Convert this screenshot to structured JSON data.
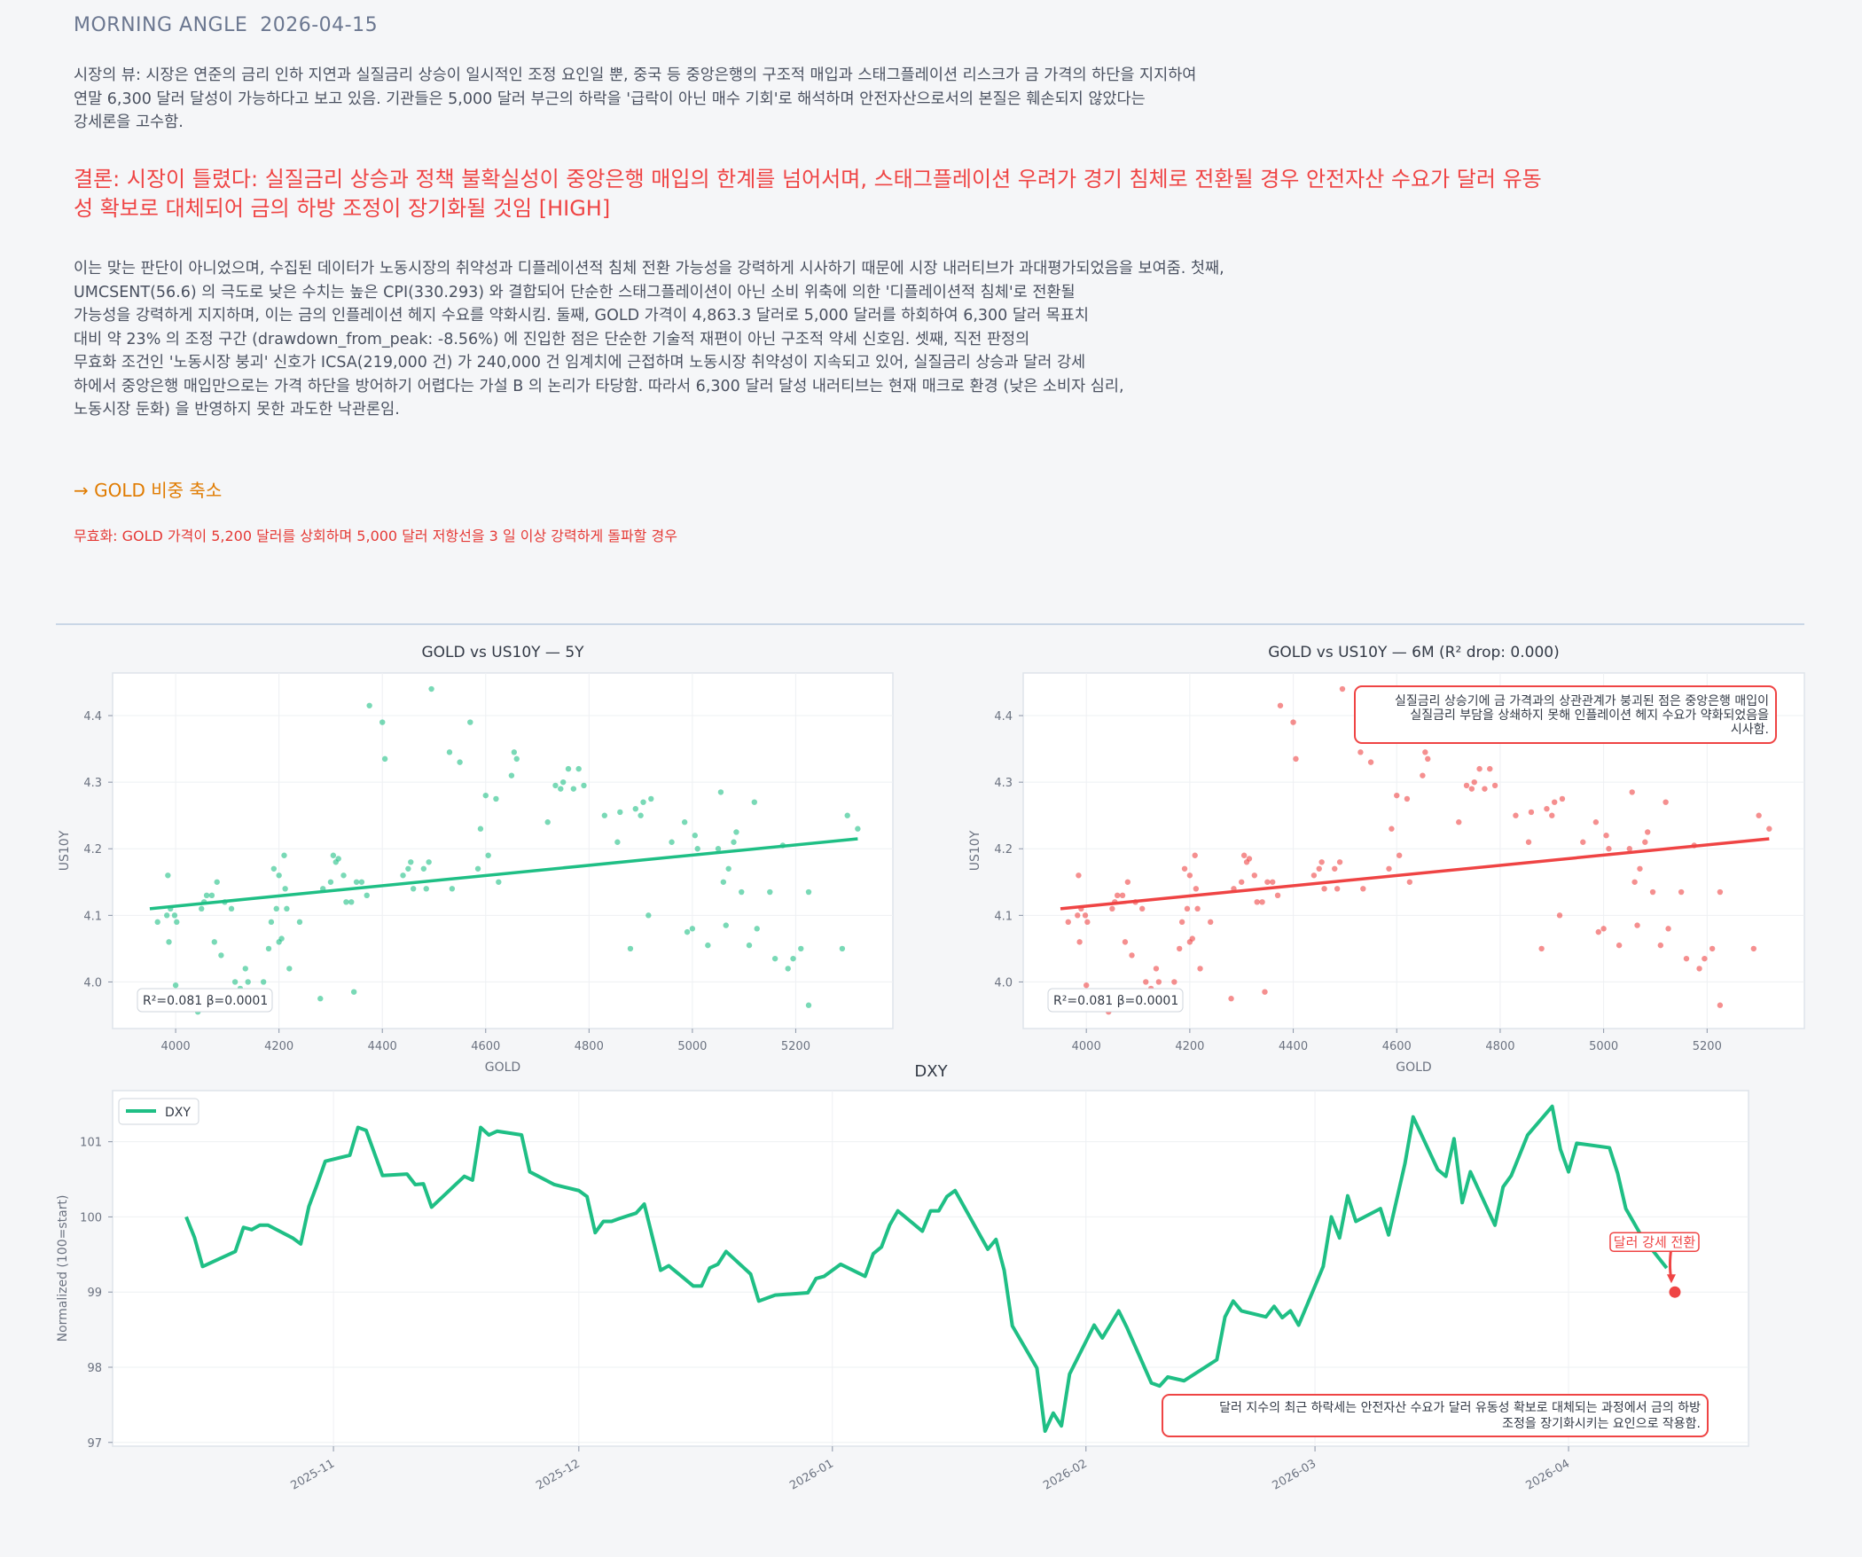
{
  "header": {
    "label": "MORNING ANGLE",
    "date": "2026-04-15"
  },
  "market_view": "시장의 뷰: 시장은 연준의 금리 인하 지연과 실질금리 상승이 일시적인 조정 요인일 뿐, 중국 등 중앙은행의 구조적 매입과 스태그플레이션 리스크가 금 가격의 하단을 지지하여\n연말 6,300 달러 달성이 가능하다고 보고 있음. 기관들은 5,000 달러 부근의 하락을 '급락이 아닌 매수 기회'로 해석하며 안전자산으로서의 본질은 훼손되지 않았다는\n강세론을 고수함.",
  "conclusion": "결론: 시장이 틀렸다: 실질금리 상승과 정책 불확실성이 중앙은행 매입의 한계를 넘어서며, 스태그플레이션 우려가 경기 침체로 전환될 경우 안전자산 수요가 달러 유동성 확보로 대체되어 금의 하방 조정이 장기화될 것임  [HIGH]",
  "analysis": "이는 맞는 판단이 아니었으며, 수집된 데이터가 노동시장의 취약성과 디플레이션적 침체 전환 가능성을 강력하게 시사하기 때문에 시장 내러티브가 과대평가되었음을 보여줌. 첫째,\nUMCSENT(56.6) 의 극도로 낮은 수치는 높은 CPI(330.293) 와 결합되어 단순한 스태그플레이션이 아닌 소비 위축에 의한 '디플레이션적 침체'로 전환될\n가능성을 강력하게 지지하며, 이는 금의 인플레이션 헤지 수요를 약화시킴. 둘째, GOLD 가격이 4,863.3 달러로 5,000 달러를 하회하여 6,300 달러 목표치\n대비 약 23% 의 조정 구간 (drawdown_from_peak: -8.56%) 에 진입한 점은 단순한 기술적 재편이 아닌 구조적 약세 신호임. 셋째, 직전 판정의\n무효화 조건인 '노동시장 붕괴' 신호가 ICSA(219,000 건) 가 240,000 건 임계치에 근접하며 노동시장 취약성이 지속되고 있어, 실질금리 상승과 달러 강세\n하에서 중앙은행 매입만으로는 가격 하단을 방어하기 어렵다는 가설 B 의 논리가 타당함. 따라서 6,300 달러 달성 내러티브는 현재 매크로 환경 (낮은 소비자 심리,\n노동시장 둔화) 을 반영하지 못한 과도한 낙관론임.",
  "action": "→ GOLD 비중 축소",
  "invalidation": "무효화: GOLD 가격이 5,200 달러를 상회하며 5,000 달러 저항선을 3 일 이상 강력하게 돌파할 경우",
  "colors": {
    "green": "#1fbf85",
    "red": "#ef4444",
    "orange": "#e07b00"
  },
  "chart_data": [
    {
      "type": "scatter",
      "title": "GOLD vs US10Y — 5Y",
      "xlabel": "GOLD",
      "ylabel": "US10Y",
      "xlim": [
        3878,
        5388
      ],
      "ylim": [
        3.93,
        4.464
      ],
      "xticks": [
        4000,
        4200,
        4400,
        4600,
        4800,
        5000,
        5200
      ],
      "yticks": [
        4.0,
        4.1,
        4.2,
        4.3,
        4.4
      ],
      "stats_label": "R²=0.081  β=0.0001",
      "fit": [
        [
          3950,
          4.11
        ],
        [
          5320,
          4.215
        ]
      ],
      "color": "#1fbf85"
    },
    {
      "type": "scatter",
      "title": "GOLD vs US10Y — 6M (R² drop: 0.000)",
      "xlabel": "GOLD",
      "ylabel": "US10Y",
      "xlim": [
        3878,
        5388
      ],
      "ylim": [
        3.93,
        4.464
      ],
      "xticks": [
        4000,
        4200,
        4400,
        4600,
        4800,
        5000,
        5200
      ],
      "yticks": [
        4.0,
        4.1,
        4.2,
        4.3,
        4.4
      ],
      "stats_label": "R²=0.081  β=0.0001",
      "fit": [
        [
          3950,
          4.11
        ],
        [
          5320,
          4.215
        ]
      ],
      "color": "#ef4444",
      "annotation": [
        "실질금리 상승기에 금 가격과의 상관관계가 붕괴된 점은 중앙은행 매입이",
        "실질금리 부담을 상쇄하지 못해 인플레이션 헤지 수요가 약화되었음을",
        "시사함."
      ]
    },
    {
      "type": "line",
      "title": "DXY",
      "ylabel": "Normalized (100=start)",
      "x_unit": "days since 2025-11-01",
      "xlim": [
        -27,
        173
      ],
      "ylim": [
        96.95,
        101.68
      ],
      "yticks": [
        97,
        98,
        99,
        100,
        101
      ],
      "xticks": [
        {
          "x": 0,
          "label": "2025-11"
        },
        {
          "x": 30,
          "label": "2025-12"
        },
        {
          "x": 61,
          "label": "2026-01"
        },
        {
          "x": 92,
          "label": "2026-02"
        },
        {
          "x": 120,
          "label": "2026-03"
        },
        {
          "x": 151,
          "label": "2026-04"
        }
      ],
      "legend": "DXY",
      "legend_position": "top-left",
      "series": [
        {
          "name": "DXY",
          "points": [
            [
              -18,
              100.0
            ],
            [
              -17,
              99.73
            ],
            [
              -16,
              99.34
            ],
            [
              -12,
              99.54
            ],
            [
              -11,
              99.86
            ],
            [
              -10,
              99.83
            ],
            [
              -9,
              99.89
            ],
            [
              -8,
              99.89
            ],
            [
              -5,
              99.72
            ],
            [
              -4,
              99.64
            ],
            [
              -3,
              100.14
            ],
            [
              -2,
              100.43
            ],
            [
              -1,
              100.74
            ],
            [
              2,
              100.82
            ],
            [
              3,
              101.19
            ],
            [
              4,
              101.15
            ],
            [
              6,
              100.55
            ],
            [
              9,
              100.57
            ],
            [
              10,
              100.43
            ],
            [
              11,
              100.44
            ],
            [
              12,
              100.13
            ],
            [
              16,
              100.54
            ],
            [
              17,
              100.49
            ],
            [
              18,
              101.19
            ],
            [
              19,
              101.09
            ],
            [
              20,
              101.14
            ],
            [
              23,
              101.09
            ],
            [
              24,
              100.6
            ],
            [
              27,
              100.43
            ],
            [
              30,
              100.35
            ],
            [
              31,
              100.27
            ],
            [
              32,
              99.79
            ],
            [
              33,
              99.94
            ],
            [
              34,
              99.94
            ],
            [
              35,
              99.98
            ],
            [
              37,
              100.05
            ],
            [
              38,
              100.17
            ],
            [
              40,
              99.29
            ],
            [
              41,
              99.35
            ],
            [
              44,
              99.08
            ],
            [
              45,
              99.08
            ],
            [
              46,
              99.32
            ],
            [
              47,
              99.37
            ],
            [
              48,
              99.54
            ],
            [
              51,
              99.24
            ],
            [
              52,
              98.88
            ],
            [
              54,
              98.96
            ],
            [
              58,
              98.99
            ],
            [
              59,
              99.18
            ],
            [
              60,
              99.21
            ],
            [
              62,
              99.37
            ],
            [
              65,
              99.21
            ],
            [
              66,
              99.51
            ],
            [
              67,
              99.6
            ],
            [
              68,
              99.89
            ],
            [
              69,
              100.08
            ],
            [
              72,
              99.81
            ],
            [
              73,
              100.08
            ],
            [
              74,
              100.08
            ],
            [
              75,
              100.27
            ],
            [
              76,
              100.35
            ],
            [
              80,
              99.57
            ],
            [
              81,
              99.7
            ],
            [
              82,
              99.29
            ],
            [
              83,
              98.55
            ],
            [
              86,
              97.99
            ],
            [
              87,
              97.15
            ],
            [
              88,
              97.39
            ],
            [
              89,
              97.22
            ],
            [
              90,
              97.91
            ],
            [
              93,
              98.56
            ],
            [
              94,
              98.39
            ],
            [
              96,
              98.75
            ],
            [
              97,
              98.53
            ],
            [
              100,
              97.79
            ],
            [
              101,
              97.75
            ],
            [
              102,
              97.87
            ],
            [
              104,
              97.82
            ],
            [
              108,
              98.1
            ],
            [
              109,
              98.67
            ],
            [
              110,
              98.88
            ],
            [
              111,
              98.75
            ],
            [
              114,
              98.67
            ],
            [
              115,
              98.81
            ],
            [
              116,
              98.66
            ],
            [
              117,
              98.75
            ],
            [
              118,
              98.56
            ],
            [
              121,
              99.34
            ],
            [
              122,
              100.0
            ],
            [
              123,
              99.72
            ],
            [
              124,
              100.28
            ],
            [
              125,
              99.94
            ],
            [
              128,
              100.11
            ],
            [
              129,
              99.76
            ],
            [
              131,
              100.71
            ],
            [
              132,
              101.33
            ],
            [
              135,
              100.63
            ],
            [
              136,
              100.54
            ],
            [
              137,
              101.04
            ],
            [
              138,
              100.19
            ],
            [
              139,
              100.6
            ],
            [
              142,
              99.89
            ],
            [
              143,
              100.4
            ],
            [
              144,
              100.55
            ],
            [
              146,
              101.09
            ],
            [
              149,
              101.47
            ],
            [
              150,
              100.9
            ],
            [
              151,
              100.6
            ],
            [
              152,
              100.98
            ],
            [
              156,
              100.92
            ],
            [
              157,
              100.58
            ],
            [
              158,
              100.11
            ],
            [
              160,
              99.73
            ],
            [
              163,
              99.32
            ]
          ]
        }
      ],
      "marker": {
        "x": 164,
        "y": 99.0,
        "label": "달러 강세 전환"
      },
      "annotation": [
        "달러 지수의 최근 하락세는 안전자산 수요가 달러 유동성 확보로 대체되는 과정에서 금의 하방",
        "조정을 장기화시키는 요인으로 작용함."
      ]
    }
  ],
  "scatter_points": [
    [
      3965,
      4.09
    ],
    [
      3983,
      4.1
    ],
    [
      3985,
      4.16
    ],
    [
      3987,
      4.06
    ],
    [
      3990,
      4.11
    ],
    [
      3998,
      4.1
    ],
    [
      4002,
      4.09
    ],
    [
      4000,
      3.995
    ],
    [
      4043,
      3.955
    ],
    [
      4050,
      4.11
    ],
    [
      4055,
      4.12
    ],
    [
      4060,
      4.13
    ],
    [
      4070,
      4.13
    ],
    [
      4075,
      4.06
    ],
    [
      4080,
      4.15
    ],
    [
      4088,
      4.04
    ],
    [
      4095,
      4.12
    ],
    [
      4108,
      4.11
    ],
    [
      4115,
      4.0
    ],
    [
      4125,
      3.99
    ],
    [
      4135,
      4.02
    ],
    [
      4140,
      4.0
    ],
    [
      4170,
      4.0
    ],
    [
      4180,
      4.05
    ],
    [
      4185,
      4.09
    ],
    [
      4190,
      4.17
    ],
    [
      4195,
      4.11
    ],
    [
      4200,
      4.16
    ],
    [
      4200,
      4.06
    ],
    [
      4205,
      4.065
    ],
    [
      4210,
      4.19
    ],
    [
      4212,
      4.14
    ],
    [
      4215,
      4.11
    ],
    [
      4220,
      4.02
    ],
    [
      4240,
      4.09
    ],
    [
      4280,
      3.975
    ],
    [
      4285,
      4.14
    ],
    [
      4300,
      4.15
    ],
    [
      4305,
      4.19
    ],
    [
      4310,
      4.18
    ],
    [
      4315,
      4.185
    ],
    [
      4325,
      4.16
    ],
    [
      4330,
      4.12
    ],
    [
      4340,
      4.12
    ],
    [
      4345,
      3.985
    ],
    [
      4350,
      4.15
    ],
    [
      4360,
      4.15
    ],
    [
      4370,
      4.13
    ],
    [
      4375,
      4.415
    ],
    [
      4400,
      4.39
    ],
    [
      4405,
      4.335
    ],
    [
      4440,
      4.16
    ],
    [
      4450,
      4.17
    ],
    [
      4455,
      4.18
    ],
    [
      4460,
      4.14
    ],
    [
      4480,
      4.17
    ],
    [
      4485,
      4.14
    ],
    [
      4490,
      4.18
    ],
    [
      4495,
      4.44
    ],
    [
      4530,
      4.345
    ],
    [
      4535,
      4.14
    ],
    [
      4550,
      4.33
    ],
    [
      4570,
      4.39
    ],
    [
      4585,
      4.17
    ],
    [
      4590,
      4.23
    ],
    [
      4600,
      4.28
    ],
    [
      4605,
      4.19
    ],
    [
      4620,
      4.275
    ],
    [
      4625,
      4.15
    ],
    [
      4650,
      4.31
    ],
    [
      4655,
      4.345
    ],
    [
      4660,
      4.335
    ],
    [
      4720,
      4.24
    ],
    [
      4735,
      4.295
    ],
    [
      4745,
      4.29
    ],
    [
      4750,
      4.3
    ],
    [
      4760,
      4.32
    ],
    [
      4770,
      4.29
    ],
    [
      4780,
      4.32
    ],
    [
      4790,
      4.295
    ],
    [
      4830,
      4.25
    ],
    [
      4855,
      4.21
    ],
    [
      4860,
      4.255
    ],
    [
      4880,
      4.05
    ],
    [
      4890,
      4.26
    ],
    [
      4900,
      4.25
    ],
    [
      4905,
      4.27
    ],
    [
      4915,
      4.1
    ],
    [
      4920,
      4.275
    ],
    [
      4960,
      4.21
    ],
    [
      4985,
      4.24
    ],
    [
      4990,
      4.075
    ],
    [
      5000,
      4.08
    ],
    [
      5005,
      4.22
    ],
    [
      5010,
      4.2
    ],
    [
      5030,
      4.055
    ],
    [
      5050,
      4.2
    ],
    [
      5055,
      4.285
    ],
    [
      5060,
      4.15
    ],
    [
      5065,
      4.085
    ],
    [
      5070,
      4.17
    ],
    [
      5080,
      4.21
    ],
    [
      5085,
      4.225
    ],
    [
      5095,
      4.135
    ],
    [
      5110,
      4.055
    ],
    [
      5120,
      4.27
    ],
    [
      5125,
      4.08
    ],
    [
      5150,
      4.135
    ],
    [
      5160,
      4.035
    ],
    [
      5175,
      4.205
    ],
    [
      5185,
      4.02
    ],
    [
      5195,
      4.035
    ],
    [
      5210,
      4.05
    ],
    [
      5225,
      4.135
    ],
    [
      5225,
      3.965
    ],
    [
      5290,
      4.05
    ],
    [
      5300,
      4.25
    ],
    [
      5320,
      4.23
    ]
  ]
}
